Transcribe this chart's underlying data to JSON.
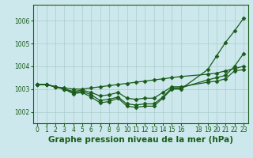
{
  "background_color": "#cce8ec",
  "grid_color": "#aacccc",
  "line_color": "#1a5c1a",
  "xlabel": "Graphe pression niveau de la mer (hPa)",
  "xlabel_fontsize": 7.5,
  "ylim": [
    1001.5,
    1006.7
  ],
  "xlim": [
    -0.5,
    23.5
  ],
  "yticks": [
    1002,
    1003,
    1004,
    1005,
    1006
  ],
  "xticks": [
    0,
    1,
    2,
    3,
    4,
    5,
    6,
    7,
    8,
    9,
    10,
    11,
    12,
    13,
    14,
    15,
    16,
    18,
    19,
    20,
    21,
    22,
    23
  ],
  "s1_x": [
    0,
    1,
    2,
    3,
    4,
    5,
    6,
    7,
    8,
    9,
    10,
    11,
    12,
    13,
    14,
    15,
    16,
    19,
    20,
    21,
    22,
    23
  ],
  "s1_y": [
    1003.2,
    1003.2,
    1003.1,
    1003.0,
    1002.8,
    1002.85,
    1002.65,
    1002.4,
    1002.45,
    1002.6,
    1002.25,
    1002.2,
    1002.25,
    1002.25,
    1002.6,
    1003.0,
    1003.0,
    1003.85,
    1004.45,
    1005.05,
    1005.55,
    1006.1
  ],
  "s2_x": [
    0,
    1,
    2,
    3,
    4,
    5,
    6,
    7,
    8,
    9,
    10,
    11,
    12,
    13,
    14,
    15,
    16,
    19,
    20,
    21,
    22,
    23
  ],
  "s2_y": [
    1003.2,
    1003.2,
    1003.1,
    1003.0,
    1002.85,
    1002.9,
    1002.75,
    1002.5,
    1002.55,
    1002.65,
    1002.35,
    1002.3,
    1002.35,
    1002.35,
    1002.65,
    1003.05,
    1003.05,
    1003.4,
    1003.5,
    1003.6,
    1004.0,
    1004.55
  ],
  "s3_x": [
    0,
    1,
    2,
    3,
    4,
    5,
    6,
    7,
    8,
    9,
    10,
    11,
    12,
    13,
    14,
    15,
    16,
    19,
    20,
    21,
    22,
    23
  ],
  "s3_y": [
    1003.2,
    1003.2,
    1003.1,
    1003.05,
    1003.0,
    1003.0,
    1003.05,
    1003.1,
    1003.15,
    1003.2,
    1003.25,
    1003.3,
    1003.35,
    1003.4,
    1003.45,
    1003.5,
    1003.55,
    1003.65,
    1003.7,
    1003.8,
    1003.9,
    1004.0
  ],
  "s4_x": [
    0,
    1,
    2,
    3,
    4,
    5,
    6,
    7,
    8,
    9,
    10,
    11,
    12,
    13,
    14,
    15,
    16,
    19,
    20,
    21,
    22,
    23
  ],
  "s4_y": [
    1003.2,
    1003.2,
    1003.1,
    1003.0,
    1002.9,
    1002.95,
    1002.85,
    1002.7,
    1002.75,
    1002.85,
    1002.6,
    1002.55,
    1002.6,
    1002.6,
    1002.85,
    1003.1,
    1003.1,
    1003.3,
    1003.35,
    1003.45,
    1003.8,
    1003.85
  ]
}
